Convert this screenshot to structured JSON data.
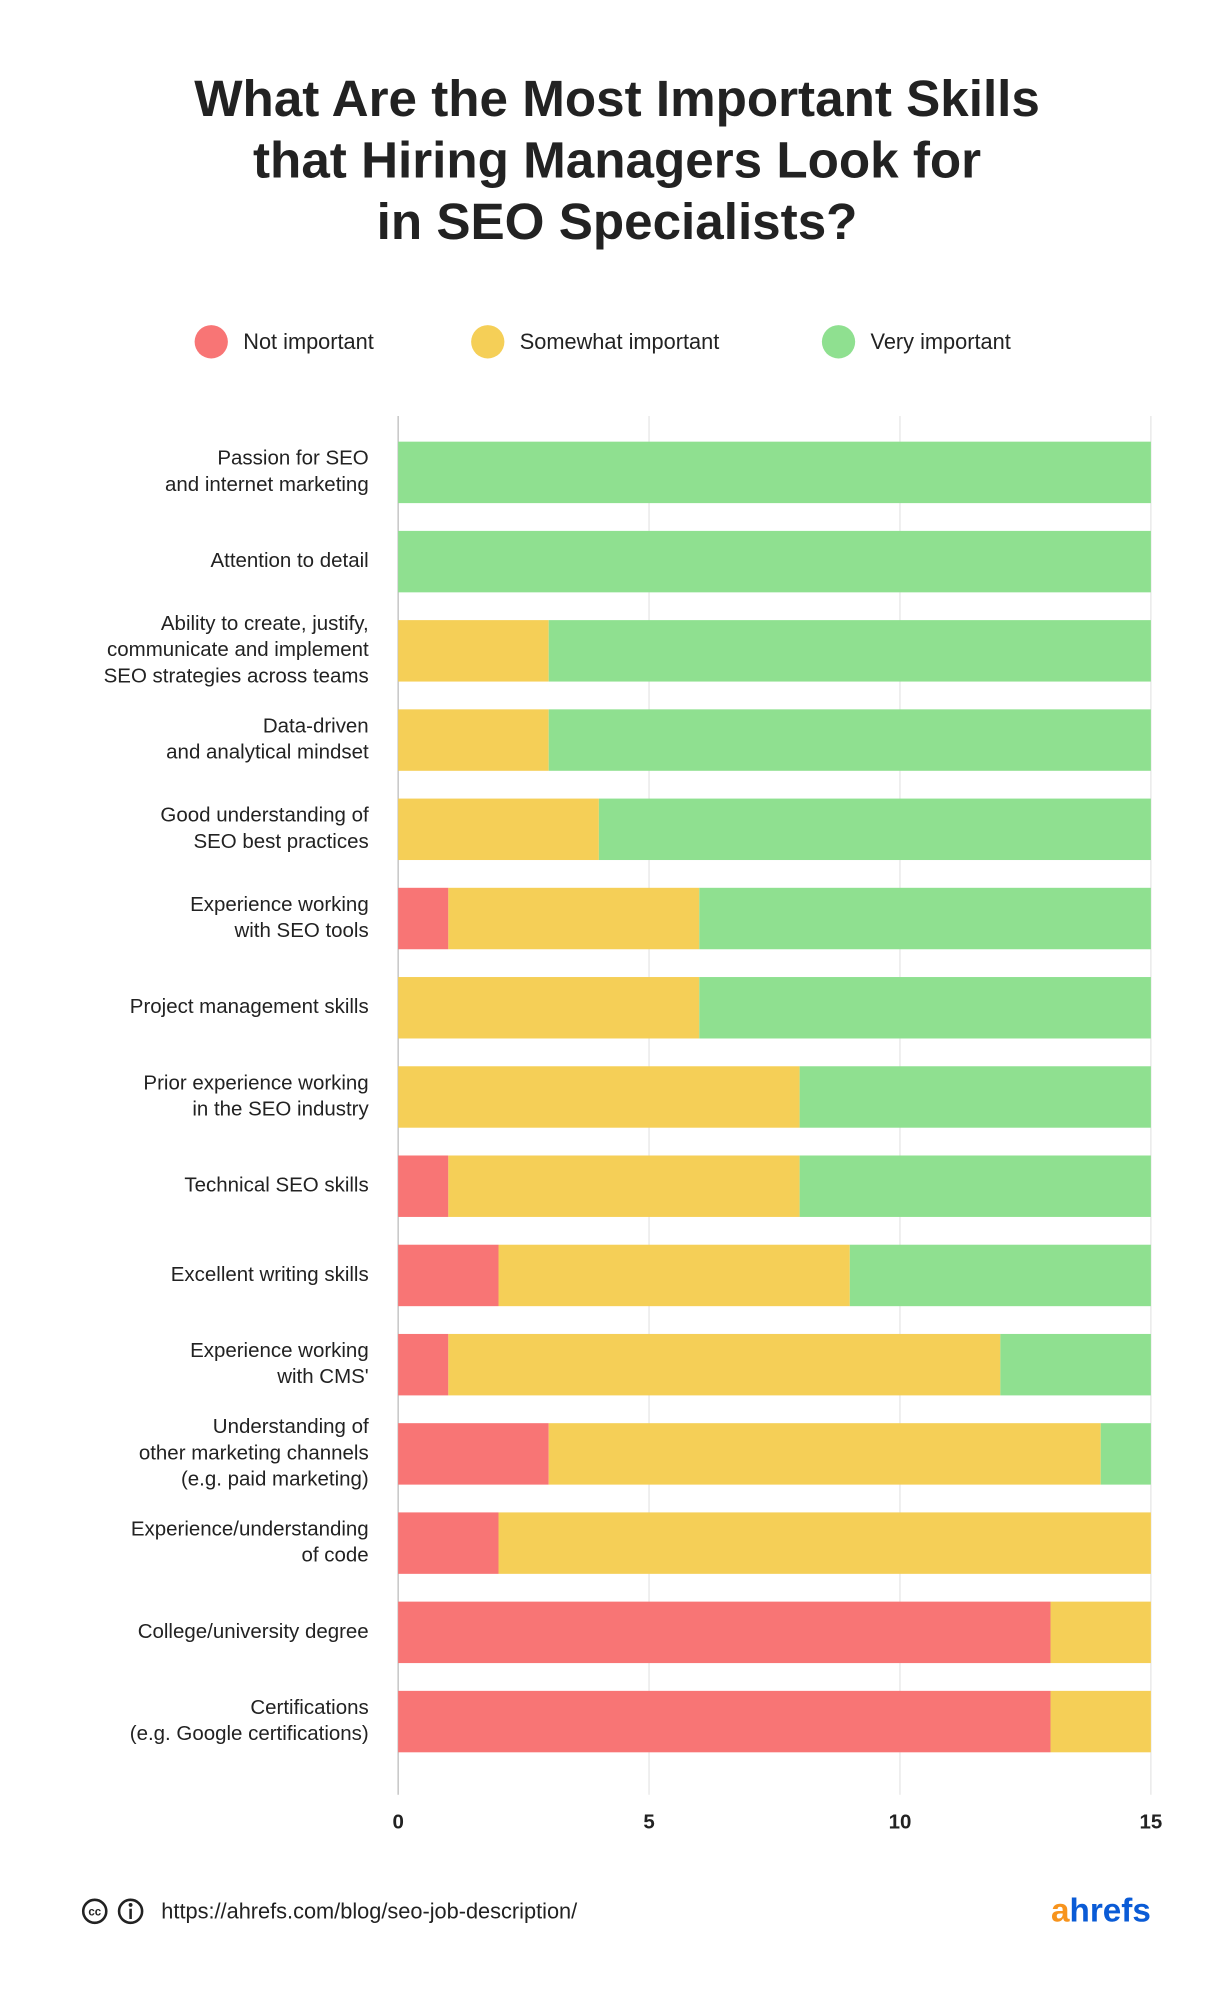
{
  "chart_data": {
    "type": "stacked-barh",
    "title": [
      "What Are the Most Important Skills",
      "that Hiring Managers Look for",
      "in SEO Specialists?"
    ],
    "categories": [
      [
        "Passion for SEO",
        "and internet marketing"
      ],
      [
        "Attention to detail"
      ],
      [
        "Ability to create, justify,",
        "communicate and implement",
        "SEO strategies across teams"
      ],
      [
        "Data-driven",
        "and analytical mindset"
      ],
      [
        "Good understanding of",
        "SEO best practices"
      ],
      [
        "Experience working",
        "with SEO tools"
      ],
      [
        "Project management skills"
      ],
      [
        "Prior experience working",
        "in the SEO industry"
      ],
      [
        "Technical SEO skills"
      ],
      [
        "Excellent writing skills"
      ],
      [
        "Experience working",
        "with CMS'"
      ],
      [
        "Understanding of",
        "other marketing channels",
        "(e.g. paid marketing)"
      ],
      [
        "Experience/understanding",
        "of code"
      ],
      [
        "College/university degree"
      ],
      [
        "Certifications",
        "(e.g. Google certifications)"
      ]
    ],
    "series": [
      {
        "name": "Not important",
        "color": "#f87575",
        "values": [
          0,
          0,
          0,
          0,
          0,
          1,
          0,
          0,
          1,
          2,
          1,
          3,
          2,
          13,
          13
        ]
      },
      {
        "name": "Somewhat important",
        "color": "#f5cf57",
        "values": [
          0,
          0,
          3,
          3,
          4,
          5,
          6,
          8,
          7,
          7,
          11,
          11,
          13,
          2,
          2
        ]
      },
      {
        "name": "Very important",
        "color": "#8fe090",
        "values": [
          15,
          15,
          12,
          12,
          11,
          9,
          9,
          7,
          7,
          6,
          3,
          1,
          0,
          0,
          0
        ]
      }
    ],
    "xlim": [
      0,
      15
    ],
    "xticks": [
      0,
      5,
      10,
      15
    ],
    "grid": true,
    "legend": "top"
  },
  "footer": {
    "url": "https://ahrefs.com/blog/seo-job-description/",
    "logo": [
      "a",
      "hrefs"
    ]
  }
}
